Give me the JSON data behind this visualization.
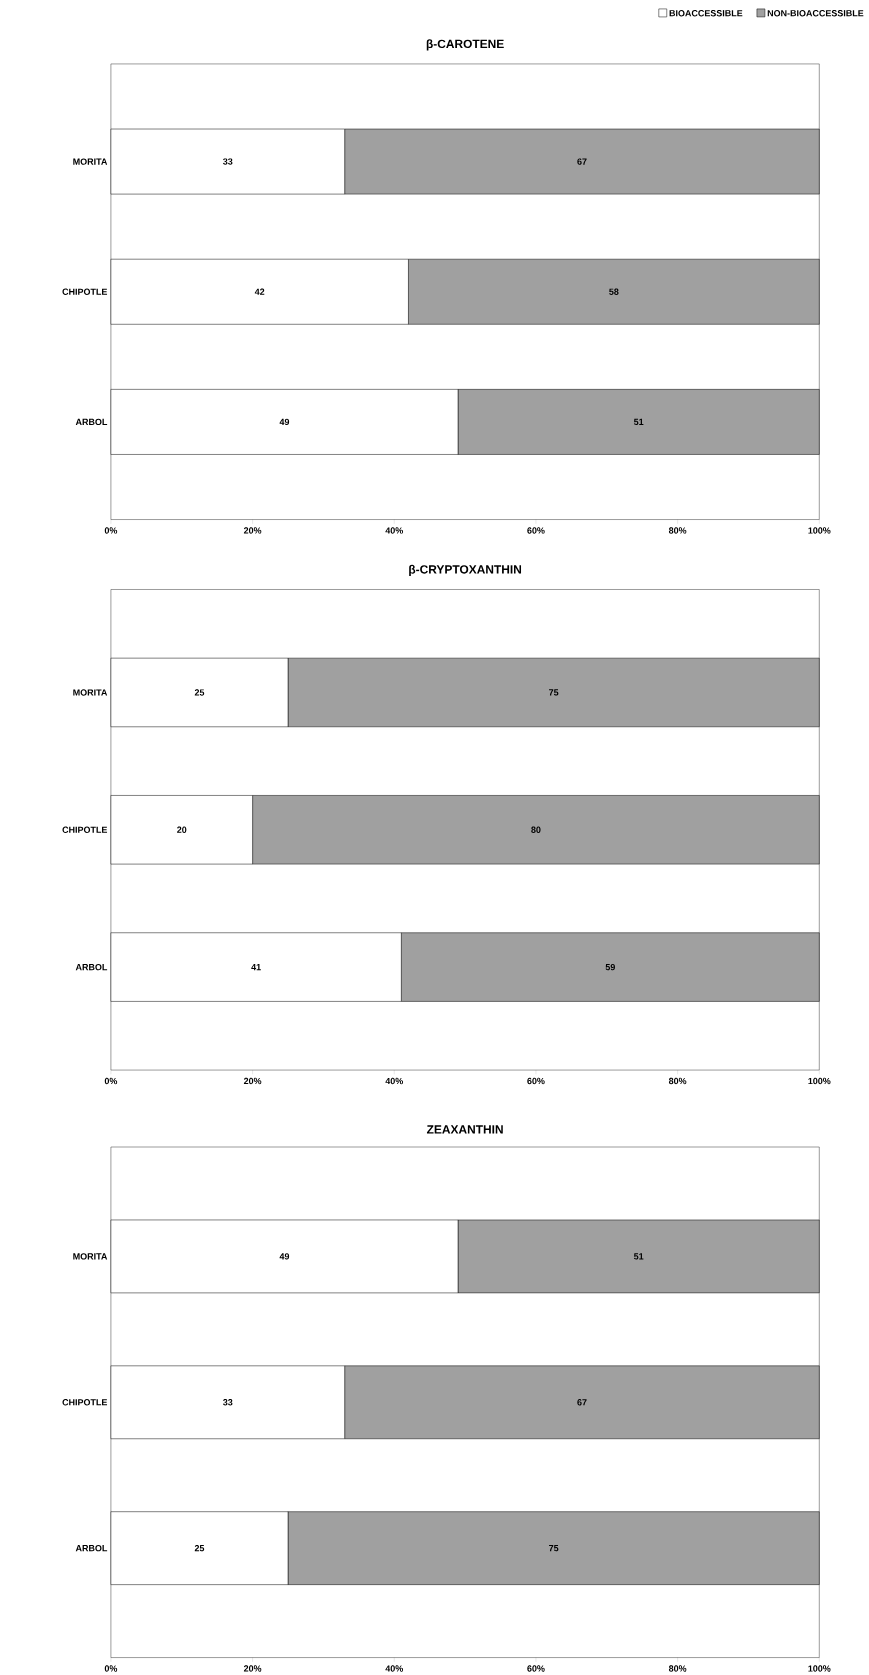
{
  "chart_data": [
    {
      "type": "bar",
      "orientation": "horizontal",
      "stacked": true,
      "title": "β-CAROTENE",
      "categories": [
        "MORITA",
        "CHIPOTLE",
        "ARBOL"
      ],
      "series": [
        {
          "name": "BIOACCESSIBLE",
          "color": "#ffffff",
          "values": [
            33,
            42,
            49
          ]
        },
        {
          "name": "NON-BIOACCESSIBLE",
          "color": "#a0a0a0",
          "values": [
            67,
            58,
            51
          ]
        }
      ],
      "xlim": [
        0,
        100
      ],
      "xticks": [
        {
          "value": 0,
          "label": "0%"
        },
        {
          "value": 20,
          "label": "20%"
        },
        {
          "value": 40,
          "label": "40%"
        },
        {
          "value": 60,
          "label": "60%"
        },
        {
          "value": 80,
          "label": "80%"
        },
        {
          "value": 100,
          "label": "100%"
        }
      ],
      "data_labels": true,
      "legend": "top right",
      "grid": false
    },
    {
      "type": "bar",
      "orientation": "horizontal",
      "stacked": true,
      "title": "β-CRYPTOXANTHIN",
      "categories": [
        "MORITA",
        "CHIPOTLE",
        "ARBOL"
      ],
      "series": [
        {
          "color": "#ffffff",
          "values": [
            25,
            20,
            41
          ]
        },
        {
          "color": "#a0a0a0",
          "values": [
            75,
            80,
            59
          ]
        }
      ],
      "xlim": [
        0,
        100
      ],
      "xticks": [
        {
          "value": 0,
          "label": "0%"
        },
        {
          "value": 20,
          "label": "20%"
        },
        {
          "value": 40,
          "label": "40%"
        },
        {
          "value": 60,
          "label": "60%"
        },
        {
          "value": 80,
          "label": "80%"
        },
        {
          "value": 100,
          "label": "100%"
        }
      ],
      "data_labels": true,
      "grid": false
    },
    {
      "type": "bar",
      "orientation": "horizontal",
      "stacked": true,
      "title": "ZEAXANTHIN",
      "categories": [
        "MORITA",
        "CHIPOTLE",
        "ARBOL"
      ],
      "series": [
        {
          "color": "#ffffff",
          "values": [
            49,
            33,
            25
          ]
        },
        {
          "color": "#a0a0a0",
          "values": [
            51,
            67,
            75
          ]
        }
      ],
      "xlim": [
        0,
        100
      ],
      "xticks": [
        {
          "value": 0,
          "label": "0%"
        },
        {
          "value": 20,
          "label": "20%"
        },
        {
          "value": 40,
          "label": "40%"
        },
        {
          "value": 60,
          "label": "60%"
        },
        {
          "value": 80,
          "label": "80%"
        },
        {
          "value": 100,
          "label": "100%"
        }
      ],
      "data_labels": true,
      "grid": false
    }
  ]
}
